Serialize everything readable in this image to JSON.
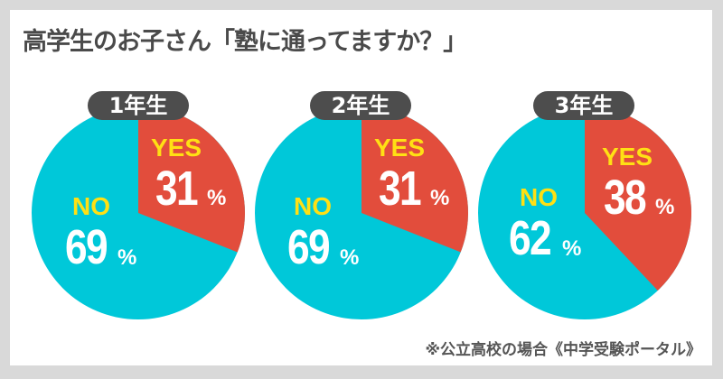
{
  "title": "高学生のお子さん「塾に通ってますか？」",
  "source": "※公立高校の場合《中学受験ポータル》",
  "colors": {
    "yes": "#e24d3c",
    "no": "#00c8d9",
    "key_label": "#ffe014",
    "badge": "#4d4d4d",
    "background": "#d9d9d9",
    "card": "#ffffff"
  },
  "pies": [
    {
      "badge": "1年生",
      "yes_label": "YES",
      "yes_value": "31",
      "no_label": "NO",
      "no_value": "69",
      "pct": "%"
    },
    {
      "badge": "2年生",
      "yes_label": "YES",
      "yes_value": "31",
      "no_label": "NO",
      "no_value": "69",
      "pct": "%"
    },
    {
      "badge": "3年生",
      "yes_label": "YES",
      "yes_value": "38",
      "no_label": "NO",
      "no_value": "62",
      "pct": "%"
    }
  ],
  "chart_data": [
    {
      "type": "pie",
      "title": "1年生",
      "categories": [
        "YES",
        "NO"
      ],
      "values": [
        31,
        69
      ],
      "colors": [
        "#e24d3c",
        "#00c8d9"
      ]
    },
    {
      "type": "pie",
      "title": "2年生",
      "categories": [
        "YES",
        "NO"
      ],
      "values": [
        31,
        69
      ],
      "colors": [
        "#e24d3c",
        "#00c8d9"
      ]
    },
    {
      "type": "pie",
      "title": "3年生",
      "categories": [
        "YES",
        "NO"
      ],
      "values": [
        38,
        62
      ],
      "colors": [
        "#e24d3c",
        "#00c8d9"
      ]
    }
  ]
}
